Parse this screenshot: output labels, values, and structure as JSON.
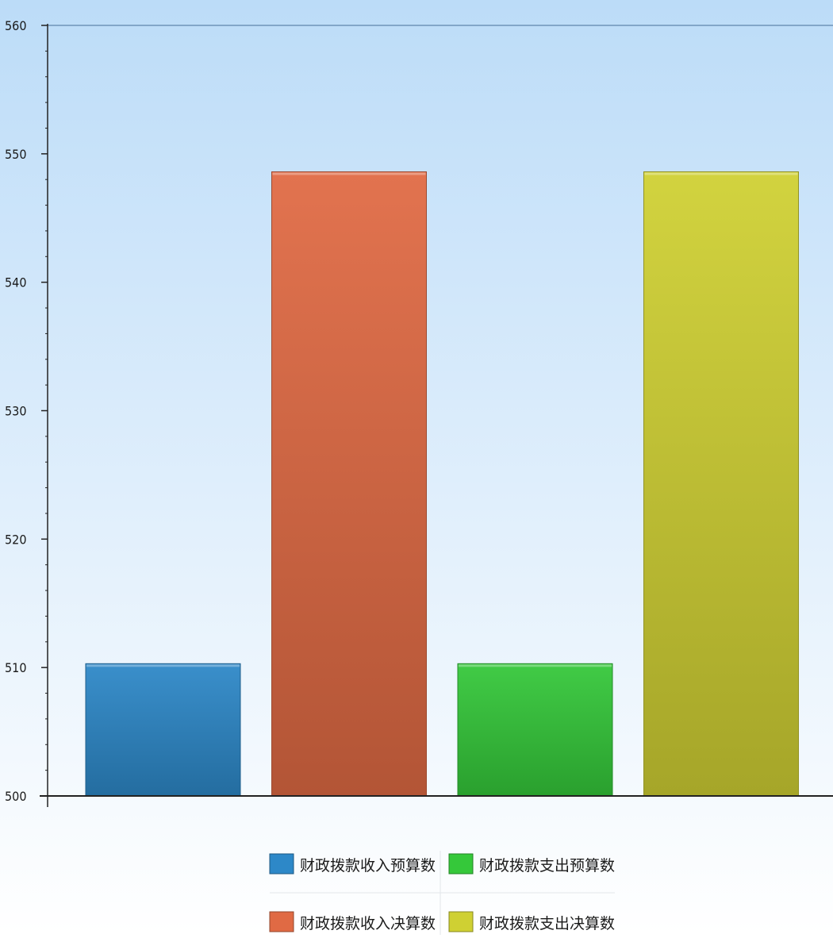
{
  "chart_data": {
    "type": "bar",
    "categories": [
      "财政拨款收入预算数",
      "财政拨款收入决算数",
      "财政拨款支出预算数",
      "财政拨款支出决算数"
    ],
    "values": [
      510.3,
      548.6,
      510.3,
      548.6
    ],
    "colors": [
      "#2d88c8",
      "#e06a44",
      "#35c83a",
      "#cfd033"
    ],
    "title": "",
    "xlabel": "",
    "ylabel": "",
    "ylim": [
      500,
      560
    ],
    "yticks": [
      "500",
      "510",
      "520",
      "530",
      "540",
      "550",
      "560"
    ],
    "grid": false,
    "legend": {
      "placement": "bottom-center",
      "columns": 2,
      "items": [
        {
          "label": "财政拨款收入预算数",
          "color": "#2d88c8"
        },
        {
          "label": "财政拨款支出预算数",
          "color": "#35c83a"
        },
        {
          "label": "财政拨款收入决算数",
          "color": "#e06a44"
        },
        {
          "label": "财政拨款支出决算数",
          "color": "#cfd033"
        }
      ]
    },
    "background": {
      "top": "#bcdcf8",
      "bottom": "#ffffff"
    }
  }
}
